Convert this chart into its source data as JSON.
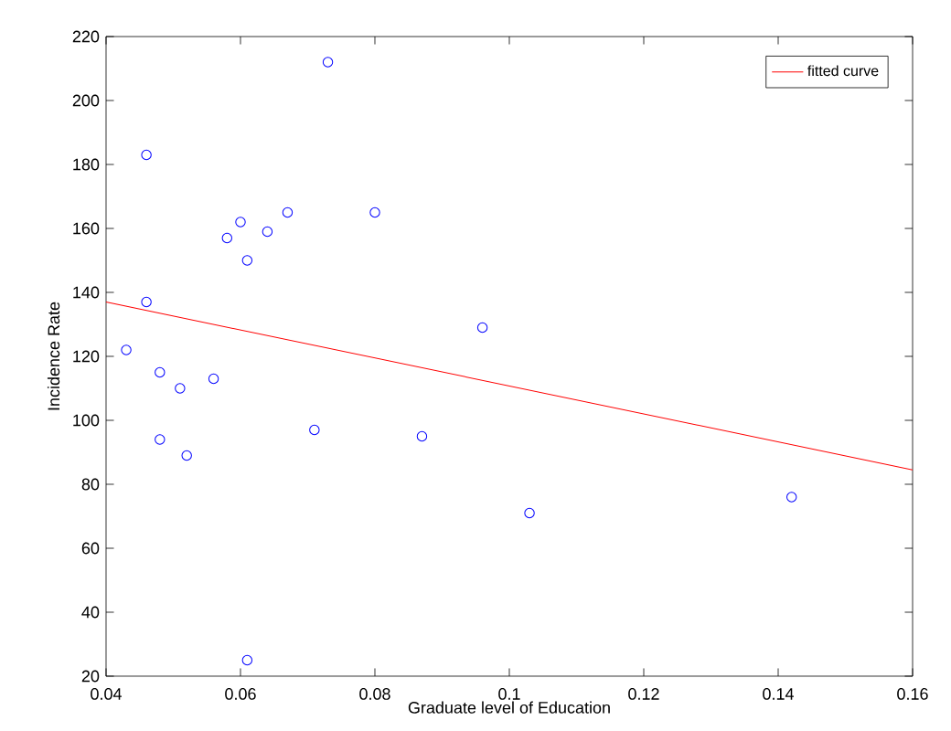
{
  "chart_data": {
    "type": "scatter",
    "xlabel": "Graduate level of Education",
    "ylabel": "Incidence Rate",
    "xlim": [
      0.04,
      0.16
    ],
    "xticks": [
      0.04,
      0.06,
      0.08,
      0.1,
      0.12,
      0.14,
      0.16
    ],
    "ylim": [
      20,
      220
    ],
    "yticks": [
      20,
      40,
      60,
      80,
      100,
      120,
      140,
      160,
      180,
      200,
      220
    ],
    "grid": false,
    "legend": "top right",
    "series": [
      {
        "color": "#0000ff",
        "marker": "circle",
        "x": [
          0.043,
          0.046,
          0.046,
          0.048,
          0.048,
          0.051,
          0.052,
          0.056,
          0.058,
          0.06,
          0.061,
          0.064,
          0.067,
          0.061,
          0.071,
          0.073,
          0.08,
          0.087,
          0.096,
          0.103,
          0.142
        ],
        "values": [
          122,
          183,
          137,
          115,
          94,
          110,
          89,
          113,
          157,
          162,
          150,
          159,
          165,
          25,
          97,
          212,
          165,
          95,
          129,
          71,
          76
        ]
      },
      {
        "type": "line",
        "name": "fitted curve",
        "color": "#ff0000",
        "line_style": "solid",
        "x": [
          0.04,
          0.16
        ],
        "values": [
          137,
          84.5
        ]
      }
    ]
  }
}
